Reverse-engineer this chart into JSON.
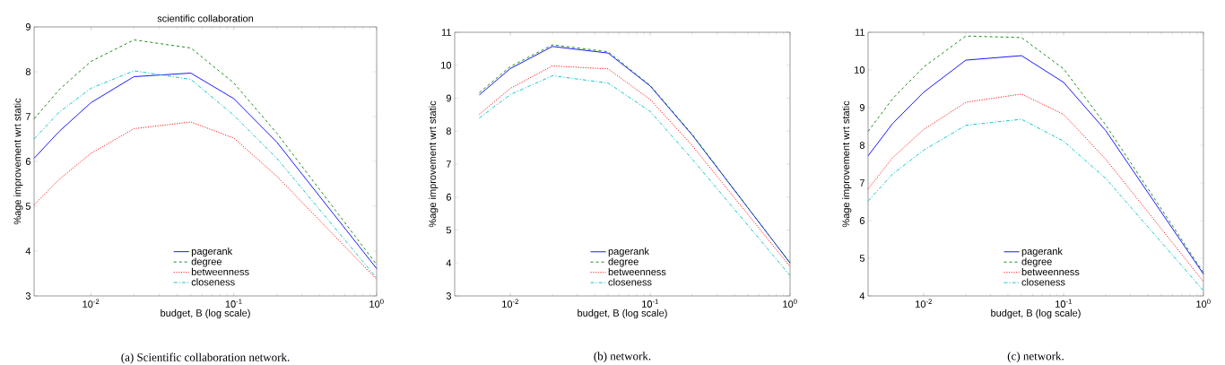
{
  "chart_data": [
    {
      "type": "line",
      "title": "scientific collaboration",
      "xlabel": "budget, B (log scale)",
      "ylabel": "%age improvement wrt static",
      "log": "x",
      "legend": "bottom",
      "grid": false,
      "marker": "none",
      "x": [
        0.004,
        0.006,
        0.01,
        0.02,
        0.05,
        0.1,
        0.2,
        1
      ],
      "xlim": [
        0.004,
        1
      ],
      "ylim": [
        3,
        9
      ],
      "xticks": [
        {
          "value": 0.01,
          "label": "10$^{-2}$"
        },
        {
          "value": 0.1,
          "label": "10$^{-1}$"
        },
        {
          "value": 1,
          "label": "10$^{0}$"
        }
      ],
      "yticks": [
        3,
        4,
        5,
        6,
        7,
        8,
        9
      ],
      "annotations": [
        "(a) Scientific collaboration network."
      ],
      "series": [
        {
          "name": "pagerank",
          "color": "#0000ff",
          "line_style": "solid",
          "values": [
            6.07,
            6.67,
            7.31,
            7.89,
            7.97,
            7.4,
            6.43,
            3.61
          ]
        },
        {
          "name": "degree",
          "color": "#008000",
          "line_style": "dashed",
          "values": [
            6.95,
            7.6,
            8.23,
            8.71,
            8.53,
            7.75,
            6.63,
            3.7
          ]
        },
        {
          "name": "betweenness",
          "color": "#ff0000",
          "line_style": "dotted",
          "values": [
            5.03,
            5.6,
            6.18,
            6.73,
            6.88,
            6.52,
            5.67,
            3.37
          ]
        },
        {
          "name": "closeness",
          "color": "#00bfbf",
          "line_style": "dashdot",
          "values": [
            6.5,
            7.1,
            7.63,
            8.02,
            7.83,
            7.03,
            6.07,
            3.4
          ]
        }
      ]
    },
    {
      "type": "line",
      "xlabel": "budget, B (log scale)",
      "ylabel": "%age improvement wrt static",
      "log": "x",
      "legend": "bottom",
      "grid": false,
      "marker": "none",
      "x": [
        0.006,
        0.01,
        0.02,
        0.05,
        0.1,
        0.2,
        1
      ],
      "xlim": [
        0.004,
        1
      ],
      "ylim": [
        3,
        11
      ],
      "xticks": [
        {
          "value": 0.01,
          "label": "10$^{-2}$"
        },
        {
          "value": 0.1,
          "label": "10$^{-1}$"
        },
        {
          "value": 1,
          "label": "10$^{0}$"
        }
      ],
      "yticks": [
        3,
        4,
        5,
        6,
        7,
        8,
        9,
        10,
        11
      ],
      "annotations": [
        "(b) network."
      ],
      "series": [
        {
          "name": "pagerank",
          "color": "#0000ff",
          "line_style": "solid",
          "values": [
            9.1,
            9.9,
            10.57,
            10.37,
            9.37,
            7.88,
            4.0
          ]
        },
        {
          "name": "degree",
          "color": "#008000",
          "line_style": "dashed",
          "values": [
            9.17,
            9.96,
            10.62,
            10.41,
            9.39,
            7.9,
            4.0
          ]
        },
        {
          "name": "betweenness",
          "color": "#ff0000",
          "line_style": "dotted",
          "values": [
            8.51,
            9.3,
            9.98,
            9.89,
            8.96,
            7.56,
            3.89
          ]
        },
        {
          "name": "closeness",
          "color": "#00bfbf",
          "line_style": "dashdot",
          "values": [
            8.4,
            9.11,
            9.68,
            9.46,
            8.6,
            7.15,
            3.62
          ]
        }
      ]
    },
    {
      "type": "line",
      "xlabel": "budget, B (log scale)",
      "ylabel": "%age improvement wrt static",
      "log": "x",
      "legend": "bottom",
      "grid": false,
      "marker": "none",
      "x": [
        0.004,
        0.006,
        0.01,
        0.02,
        0.05,
        0.1,
        0.2,
        1
      ],
      "xlim": [
        0.004,
        1
      ],
      "ylim": [
        4,
        11
      ],
      "xticks": [
        {
          "value": 0.01,
          "label": "10$^{-2}$"
        },
        {
          "value": 0.1,
          "label": "10$^{-1}$"
        },
        {
          "value": 1,
          "label": "10$^{0}$"
        }
      ],
      "yticks": [
        4,
        5,
        6,
        7,
        8,
        9,
        10,
        11
      ],
      "annotations": [
        "(c) network."
      ],
      "series": [
        {
          "name": "pagerank",
          "color": "#0000ff",
          "line_style": "solid",
          "values": [
            7.72,
            8.58,
            9.41,
            10.26,
            10.38,
            9.67,
            8.39,
            4.58
          ]
        },
        {
          "name": "degree",
          "color": "#008000",
          "line_style": "dashed",
          "values": [
            8.37,
            9.24,
            10.08,
            10.9,
            10.86,
            10.03,
            8.54,
            4.62
          ]
        },
        {
          "name": "betweenness",
          "color": "#ff0000",
          "line_style": "dotted",
          "values": [
            6.84,
            7.67,
            8.42,
            9.14,
            9.36,
            8.82,
            7.63,
            4.38
          ]
        },
        {
          "name": "closeness",
          "color": "#00bfbf",
          "line_style": "dashdot",
          "values": [
            6.52,
            7.24,
            7.87,
            8.53,
            8.69,
            8.11,
            7.12,
            4.14
          ]
        }
      ]
    }
  ]
}
